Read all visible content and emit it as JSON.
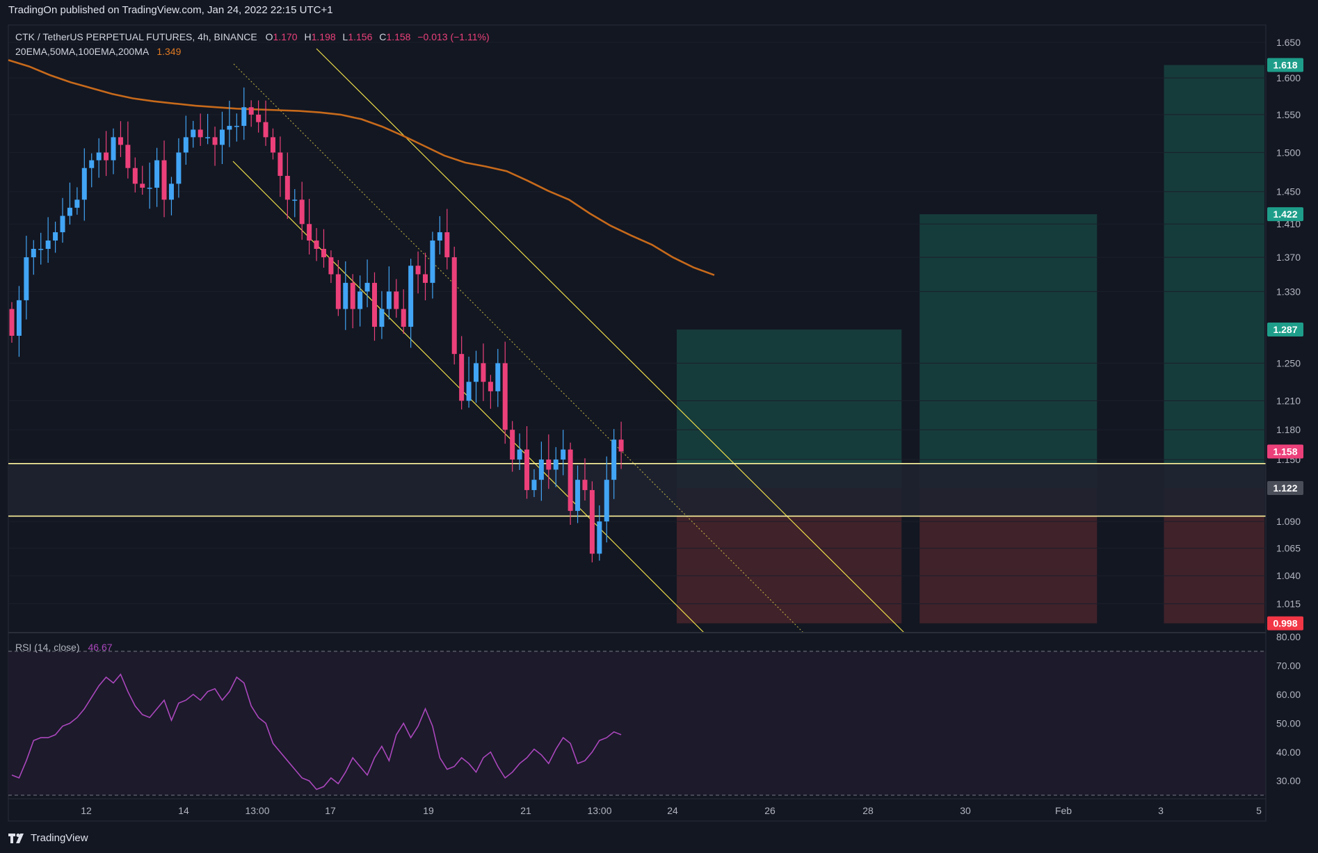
{
  "header": {
    "published": "TradingOn published on TradingView.com, Jan 24, 2022 22:15 UTC+1"
  },
  "footer": {
    "brand": "TradingView"
  },
  "legend": {
    "symbol": "CTK / TetherUS PERPETUAL FUTURES, 4h, BINANCE",
    "ohlc": [
      {
        "k": "O",
        "v": "1.170"
      },
      {
        "k": "H",
        "v": "1.198"
      },
      {
        "k": "L",
        "v": "1.156"
      },
      {
        "k": "C",
        "v": "1.158"
      }
    ],
    "change": "−0.013 (−1.11%)",
    "ma_label": "20EMA,50MA,100EMA,200MA",
    "ma_value": "1.349",
    "rsi_label": "RSI (14, close)",
    "rsi_value": "46.67"
  },
  "colors": {
    "background": "#131722",
    "up": "#42a5f5",
    "down": "#ec407a",
    "ma200": "#c76a1b",
    "rsi": "#ab47bc",
    "level_line": "#fff59d",
    "channel": "#f0e04a",
    "target_zone": "#163b3b",
    "stop_zone": "#40222a",
    "label_green": "#1e9e8a",
    "label_red": "#f23645",
    "label_pink": "#ec407a",
    "label_gray": "#4a4e59"
  },
  "chart_data": [
    {
      "type": "candlestick",
      "title": "CTK / TetherUS PERPETUAL FUTURES, 4h, BINANCE",
      "x_axis_labels": [
        "12",
        "14",
        "13:00",
        "17",
        "19",
        "21",
        "13:00",
        "24",
        "26",
        "28",
        "30",
        "Feb",
        "3",
        "5"
      ],
      "y_axis_labels": [
        "1.650",
        "1.600",
        "1.550",
        "1.500",
        "1.450",
        "1.410",
        "1.370",
        "1.330",
        "1.250",
        "1.210",
        "1.180",
        "1.150",
        "1.090",
        "1.065",
        "1.040",
        "1.015"
      ],
      "ylim": [
        0.99,
        1.675
      ],
      "scale": "log",
      "closes": [
        1.28,
        1.32,
        1.37,
        1.38,
        1.38,
        1.39,
        1.4,
        1.42,
        1.43,
        1.44,
        1.48,
        1.49,
        1.5,
        1.49,
        1.52,
        1.51,
        1.48,
        1.46,
        1.455,
        1.455,
        1.49,
        1.44,
        1.46,
        1.5,
        1.52,
        1.53,
        1.52,
        1.52,
        1.51,
        1.53,
        1.535,
        1.535,
        1.56,
        1.55,
        1.54,
        1.52,
        1.5,
        1.47,
        1.44,
        1.44,
        1.41,
        1.39,
        1.38,
        1.37,
        1.35,
        1.31,
        1.34,
        1.31,
        1.33,
        1.34,
        1.29,
        1.31,
        1.33,
        1.31,
        1.29,
        1.36,
        1.35,
        1.34,
        1.39,
        1.4,
        1.37,
        1.26,
        1.21,
        1.23,
        1.25,
        1.23,
        1.22,
        1.25,
        1.18,
        1.15,
        1.16,
        1.12,
        1.13,
        1.15,
        1.14,
        1.15,
        1.16,
        1.1,
        1.13,
        1.12,
        1.06,
        1.09,
        1.13,
        1.17,
        1.158
      ],
      "series": [
        {
          "name": "20EMA,50MA,100EMA,200MA",
          "value_label": "1.349",
          "points": [
            1.625,
            1.616,
            1.604,
            1.594,
            1.586,
            1.578,
            1.572,
            1.568,
            1.565,
            1.562,
            1.56,
            1.558,
            1.557,
            1.556,
            1.555,
            1.553,
            1.55,
            1.544,
            1.534,
            1.522,
            1.509,
            1.496,
            1.487,
            1.482,
            1.476,
            1.464,
            1.451,
            1.44,
            1.423,
            1.408,
            1.396,
            1.385,
            1.37,
            1.358,
            1.349
          ]
        }
      ],
      "price_labels": [
        {
          "value": 1.618,
          "text": "1.618",
          "kind": "target"
        },
        {
          "value": 1.422,
          "text": "1.422",
          "kind": "target"
        },
        {
          "value": 1.287,
          "text": "1.287",
          "kind": "target"
        },
        {
          "value": 1.158,
          "text": "1.158",
          "kind": "last"
        },
        {
          "value": 1.122,
          "text": "1.122",
          "kind": "entry"
        },
        {
          "value": 0.998,
          "text": "0.998",
          "kind": "stop"
        }
      ],
      "horizontal_levels": [
        1.146,
        1.095
      ],
      "positions": [
        {
          "entry": 1.122,
          "target": 1.287,
          "stop": 0.998,
          "from": "Jan 24",
          "to": "Jan 29"
        },
        {
          "entry": 1.122,
          "target": 1.422,
          "stop": 0.998,
          "from": "Jan 29",
          "to": "Feb 2"
        },
        {
          "entry": 1.122,
          "target": 1.618,
          "stop": 0.998,
          "from": "Feb 3",
          "to": "Feb 5"
        }
      ]
    },
    {
      "type": "line",
      "title": "RSI (14, close)",
      "y_axis_labels": [
        "80.00",
        "70.00",
        "60.00",
        "50.00",
        "40.00",
        "30.00"
      ],
      "ylim": [
        24,
        81
      ],
      "bands": [
        75,
        25
      ],
      "values": [
        32,
        31,
        37,
        44,
        45,
        45,
        46,
        49,
        50,
        52,
        55,
        59,
        63,
        66,
        64,
        67,
        61,
        56,
        53,
        52,
        55,
        58,
        51,
        57,
        58,
        60,
        58,
        61,
        62,
        58,
        61,
        66,
        64,
        56,
        52,
        50,
        43,
        40,
        37,
        34,
        31,
        30,
        27,
        28,
        31,
        29,
        33,
        38,
        35,
        32,
        38,
        42,
        37,
        46,
        50,
        45,
        49,
        55,
        49,
        38,
        34,
        35,
        38,
        36,
        33,
        38,
        40,
        35,
        31,
        33,
        36,
        38,
        41,
        39,
        36,
        41,
        45,
        43,
        36,
        37,
        40,
        44,
        45,
        47,
        46
      ]
    }
  ]
}
